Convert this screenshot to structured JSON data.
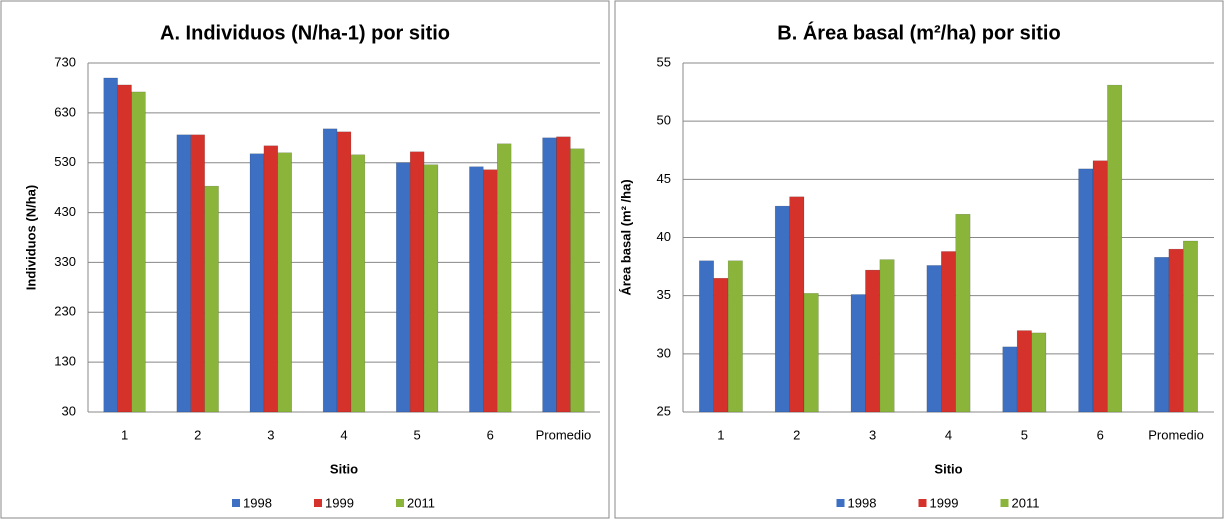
{
  "chart_data": [
    {
      "type": "bar",
      "title": "A. Individuos (N/ha-1) por sitio",
      "x_label": "Sitio",
      "y_label": "Individuos (N/ha)",
      "categories": [
        "1",
        "2",
        "3",
        "4",
        "5",
        "6",
        "Promedio"
      ],
      "series": [
        {
          "name": "1998",
          "color": "#3d6fc2",
          "values": [
            700,
            586,
            548,
            598,
            530,
            522,
            580
          ]
        },
        {
          "name": "1999",
          "color": "#d5322c",
          "values": [
            686,
            586,
            564,
            592,
            552,
            516,
            582
          ]
        },
        {
          "name": "2011",
          "color": "#8ab53a",
          "values": [
            672,
            483,
            550,
            546,
            526,
            568,
            558
          ]
        }
      ],
      "ylim": [
        30,
        730
      ],
      "yticks": [
        30,
        130,
        230,
        330,
        430,
        530,
        630,
        730
      ],
      "grid": true,
      "legend": "bottom"
    },
    {
      "type": "bar",
      "title": "B. Área basal (m²/ha) por sitio",
      "x_label": "Sitio",
      "y_label": "Área basal (m² /ha)",
      "categories": [
        "1",
        "2",
        "3",
        "4",
        "5",
        "6",
        "Promedio"
      ],
      "series": [
        {
          "name": "1998",
          "color": "#3d6fc2",
          "values": [
            38.0,
            42.7,
            35.1,
            37.6,
            30.6,
            45.9,
            38.3
          ]
        },
        {
          "name": "1999",
          "color": "#d5322c",
          "values": [
            36.5,
            43.5,
            37.2,
            38.8,
            32.0,
            46.6,
            39.0
          ]
        },
        {
          "name": "2011",
          "color": "#8ab53a",
          "values": [
            38.0,
            35.2,
            38.1,
            42.0,
            31.8,
            53.1,
            39.7
          ]
        }
      ],
      "ylim": [
        25,
        55
      ],
      "yticks": [
        25,
        30,
        35,
        40,
        45,
        50,
        55
      ],
      "grid": true,
      "legend": "bottom"
    }
  ]
}
